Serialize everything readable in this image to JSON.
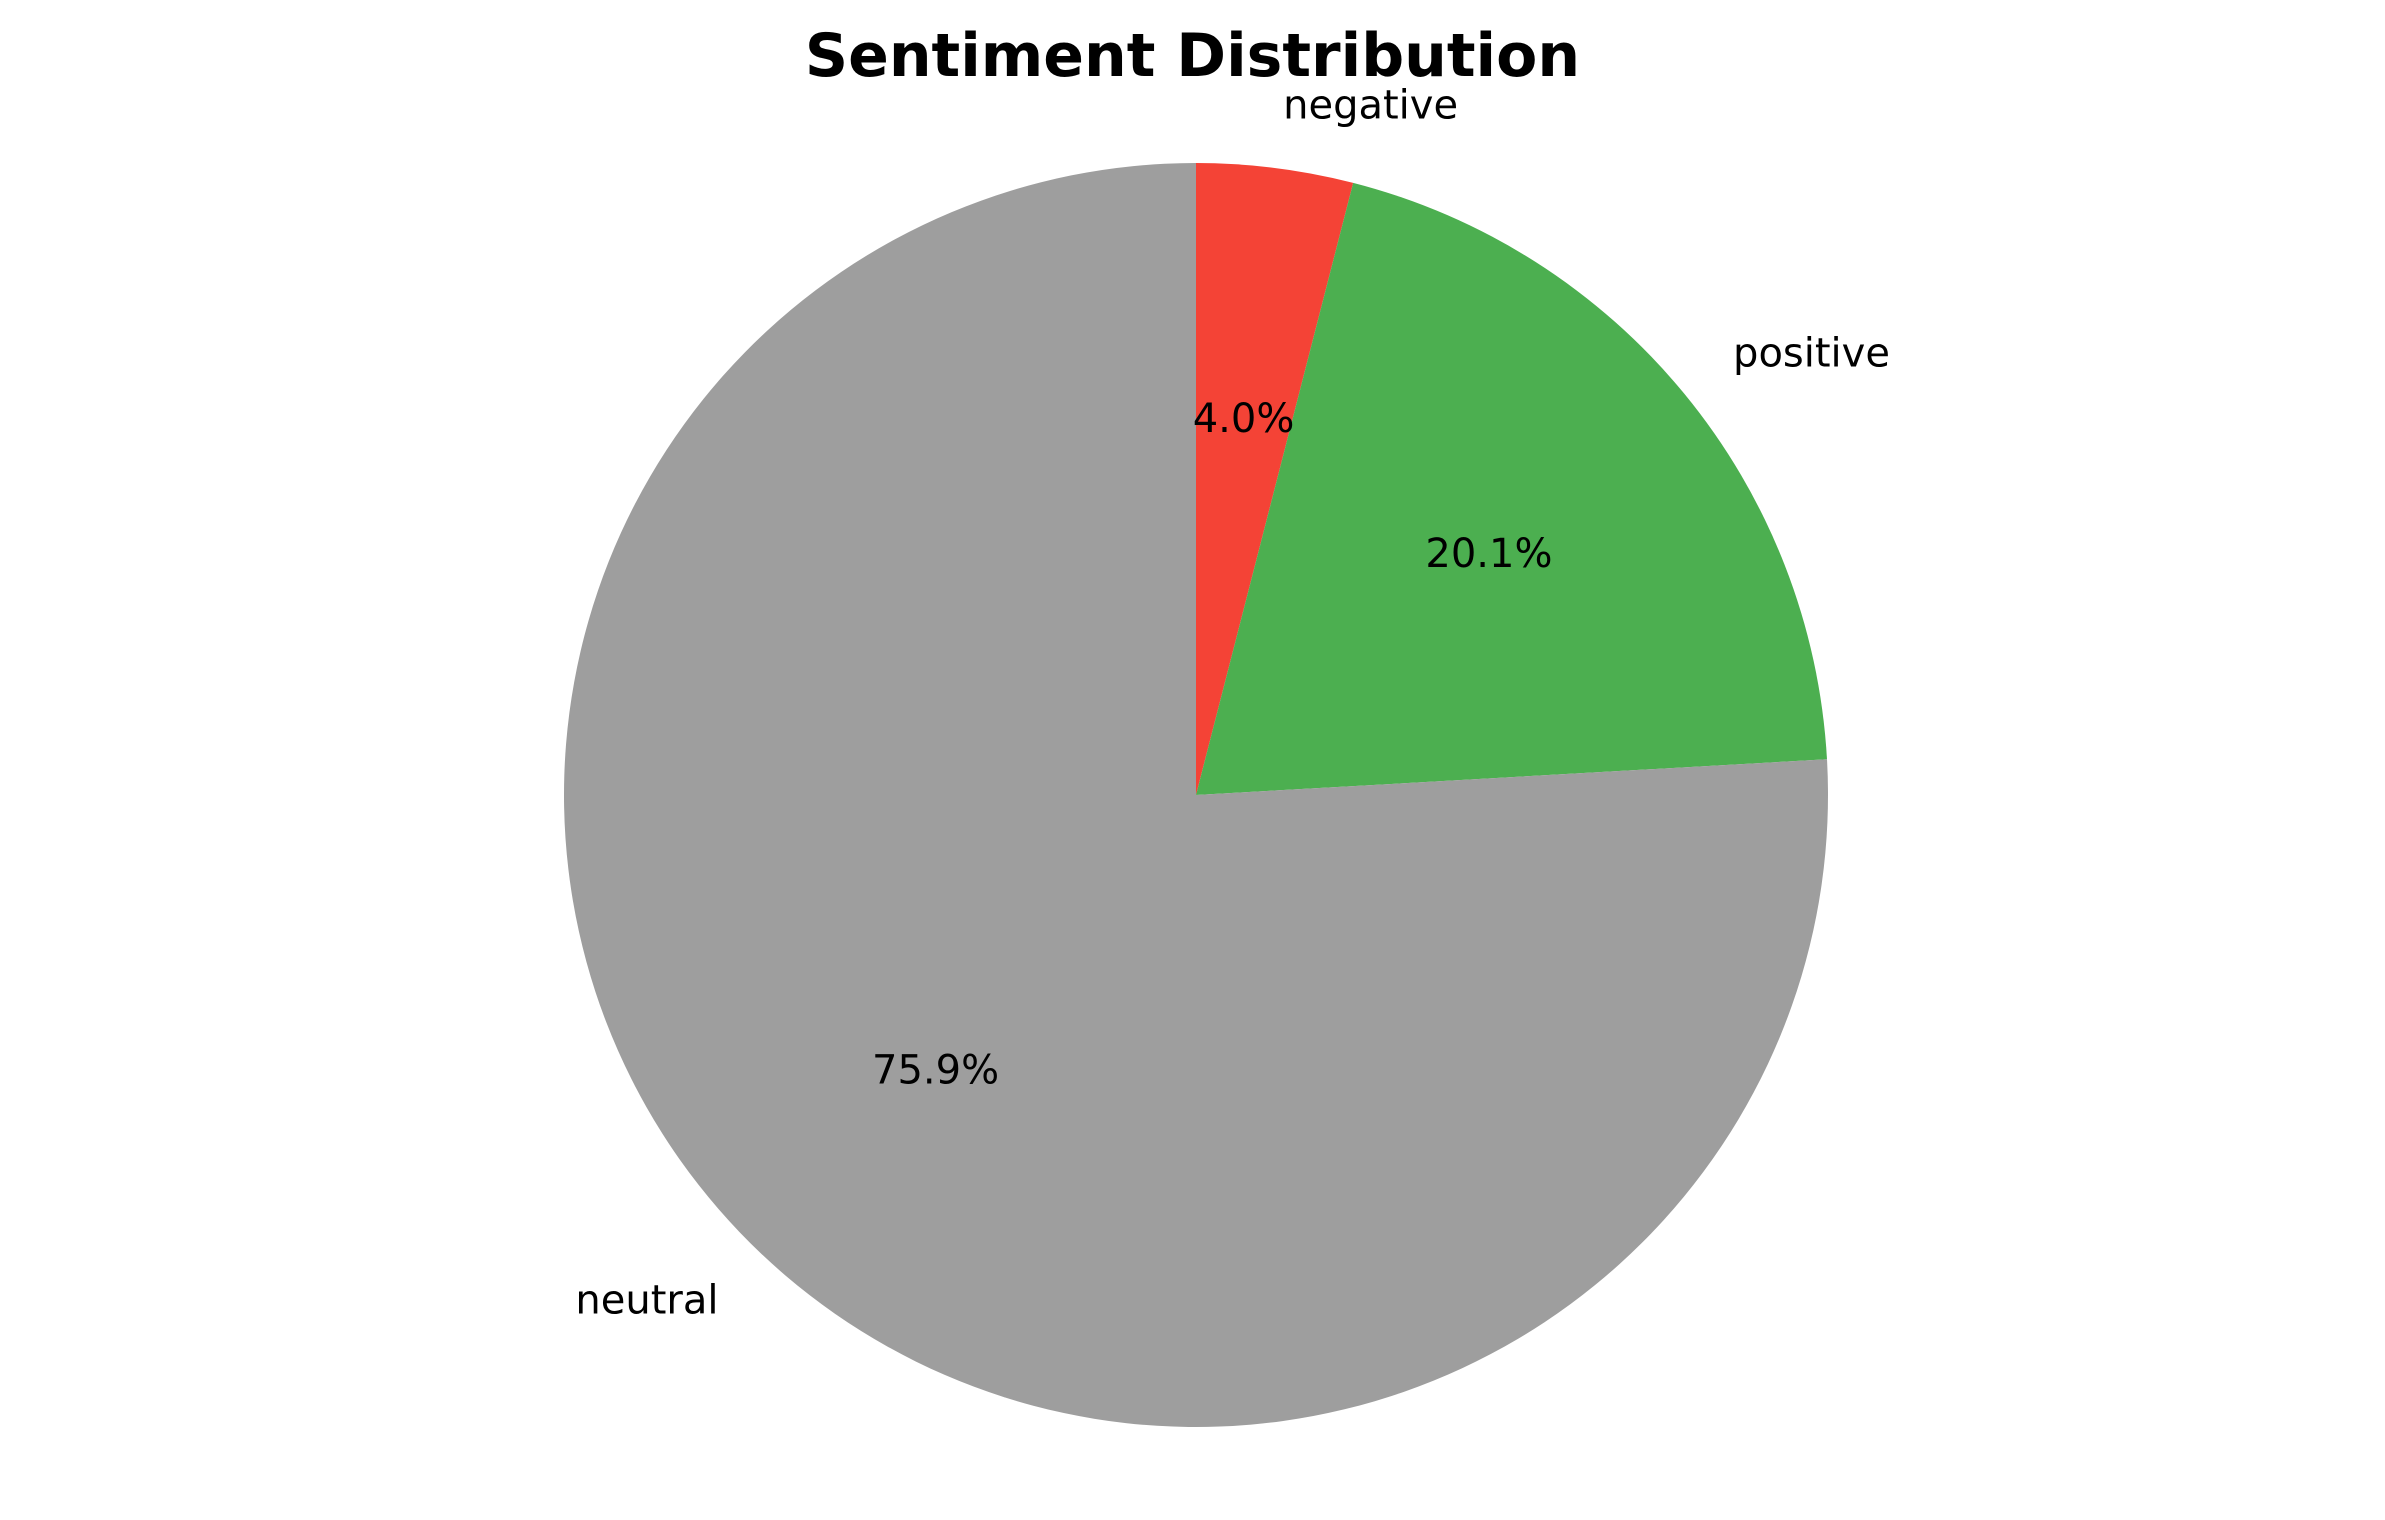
{
  "chart_data": {
    "type": "pie",
    "title": "Sentiment Distribution",
    "categories": [
      "negative",
      "positive",
      "neutral"
    ],
    "values": [
      4.0,
      20.1,
      75.9
    ],
    "percent_labels": [
      "4.0%",
      "20.1%",
      "75.9%"
    ],
    "colors": [
      "#f44336",
      "#4caf50",
      "#9e9e9e"
    ],
    "start_angle_deg": 90,
    "direction": "clockwise",
    "legend": "none",
    "grid": false
  }
}
